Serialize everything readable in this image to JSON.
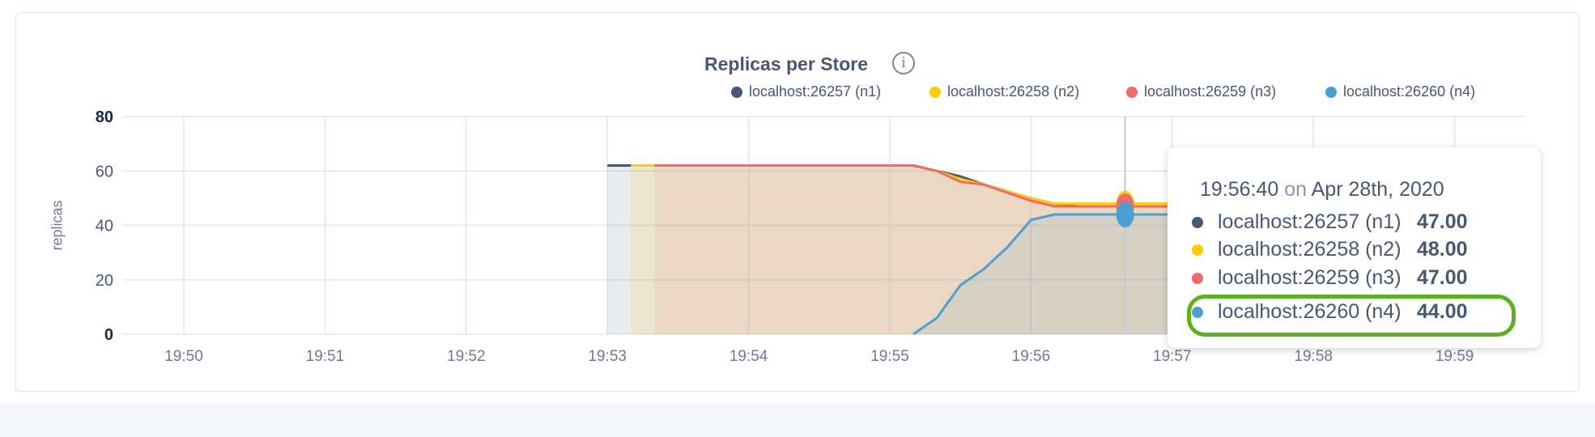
{
  "chart_data": {
    "type": "area",
    "title": "Replicas per Store",
    "ylabel": "replicas",
    "xlabel": "",
    "ylim": [
      0,
      80
    ],
    "yticks": [
      "0",
      "20",
      "40",
      "60",
      "80"
    ],
    "xlim": [
      "19:49:30",
      "19:59:30"
    ],
    "xticks": [
      "19:50",
      "19:51",
      "19:52",
      "19:53",
      "19:54",
      "19:55",
      "19:56",
      "19:57",
      "19:58",
      "19:59"
    ],
    "grid": true,
    "legend_position": "top-right",
    "series": [
      {
        "name": "localhost:26257 (n1)",
        "color": "#475872",
        "points": [
          [
            "19:53:00",
            62
          ],
          [
            "19:55:10",
            62
          ],
          [
            "19:55:20",
            60
          ],
          [
            "19:55:30",
            58
          ],
          [
            "19:55:40",
            55
          ],
          [
            "19:56:00",
            50
          ],
          [
            "19:56:10",
            48
          ],
          [
            "19:56:20",
            47
          ],
          [
            "19:59:00",
            47
          ]
        ]
      },
      {
        "name": "localhost:26258 (n2)",
        "color": "#ffcd02",
        "points": [
          [
            "19:53:10",
            62
          ],
          [
            "19:55:10",
            62
          ],
          [
            "19:55:20",
            60
          ],
          [
            "19:55:30",
            57
          ],
          [
            "19:55:40",
            55
          ],
          [
            "19:56:00",
            50
          ],
          [
            "19:56:10",
            48
          ],
          [
            "19:59:00",
            48
          ]
        ]
      },
      {
        "name": "localhost:26259 (n3)",
        "color": "#f16969",
        "points": [
          [
            "19:53:20",
            62
          ],
          [
            "19:55:10",
            62
          ],
          [
            "19:55:20",
            60
          ],
          [
            "19:55:30",
            56
          ],
          [
            "19:55:40",
            55
          ],
          [
            "19:56:00",
            49
          ],
          [
            "19:56:10",
            47
          ],
          [
            "19:59:00",
            47
          ]
        ]
      },
      {
        "name": "localhost:26260 (n4)",
        "color": "#4e9fd1",
        "points": [
          [
            "19:55:10",
            0
          ],
          [
            "19:55:20",
            6
          ],
          [
            "19:55:30",
            18
          ],
          [
            "19:55:40",
            24
          ],
          [
            "19:55:50",
            32
          ],
          [
            "19:56:00",
            42
          ],
          [
            "19:56:10",
            44
          ],
          [
            "19:59:00",
            44
          ]
        ]
      }
    ],
    "hover": {
      "time": "19:56:40"
    }
  },
  "tooltip": {
    "time": "19:56:40",
    "on": "on",
    "date": "Apr 28th, 2020",
    "rows": [
      {
        "name": "localhost:26257 (n1)",
        "value": "47.00",
        "color": "#475872"
      },
      {
        "name": "localhost:26258 (n2)",
        "value": "48.00",
        "color": "#ffcd02"
      },
      {
        "name": "localhost:26259 (n3)",
        "value": "47.00",
        "color": "#f16969"
      },
      {
        "name": "localhost:26260 (n4)",
        "value": "44.00",
        "color": "#4e9fd1",
        "highlighted": true
      }
    ],
    "highlight_color": "#5cb21e"
  },
  "info_icon": "info-icon"
}
